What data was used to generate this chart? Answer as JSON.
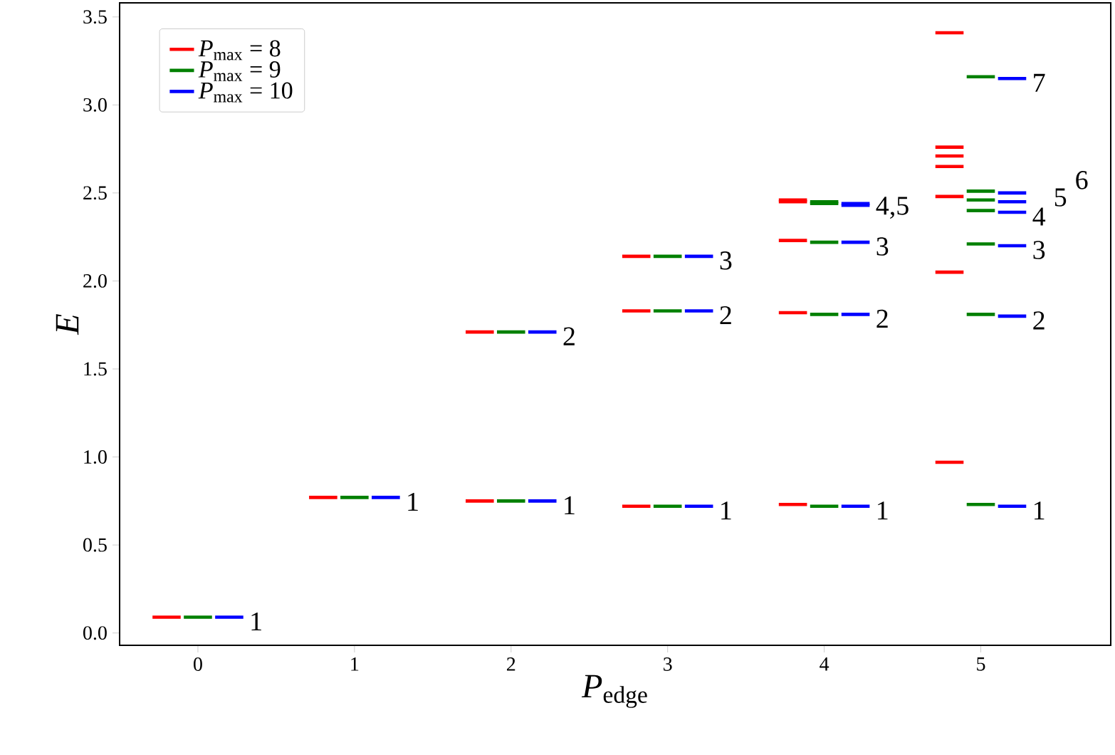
{
  "chart_data": {
    "type": "line",
    "xlabel": "*P*$_{edge}$",
    "ylabel": "E",
    "xlim": [
      -0.5,
      5.83
    ],
    "ylim": [
      -0.07,
      3.58
    ],
    "xticks": [
      0,
      1,
      2,
      3,
      4,
      5
    ],
    "yticks": [
      {
        "value": 0,
        "label": "0.0"
      },
      {
        "value": 0.5,
        "label": "0.5"
      },
      {
        "value": 1,
        "label": "1.0"
      },
      {
        "value": 1.5,
        "label": "1.5"
      },
      {
        "value": 2,
        "label": "2.0"
      },
      {
        "value": 2.5,
        "label": "2.5"
      },
      {
        "value": 3,
        "label": "3.0"
      },
      {
        "value": 3.5,
        "label": "3.5"
      }
    ],
    "legend": "top left",
    "series": [
      {
        "name": "*P*$_{max}$ = 8",
        "color": "#ff0000",
        "x": [
          -0.29,
          -0.11
        ],
        "values": [
          0.09,
          0.09
        ]
      },
      {
        "name": "*P*$_{max}$ = 9",
        "color": "#008000",
        "x": [
          -0.09,
          0.09
        ],
        "values": [
          0.09,
          0.09
        ]
      },
      {
        "name": "*P*$_{max}$ = 10",
        "color": "#0000ff",
        "x": [
          0.11,
          0.29
        ],
        "values": [
          0.09,
          0.09
        ]
      },
      {
        "color": "#ff0000",
        "x": [
          0.71,
          0.89
        ],
        "values": [
          0.77,
          0.77
        ]
      },
      {
        "color": "#ff0000",
        "x": [
          1.71,
          1.89
        ],
        "values": [
          0.75,
          0.75
        ]
      },
      {
        "color": "#ff0000",
        "x": [
          1.71,
          1.89
        ],
        "values": [
          1.71,
          1.71
        ]
      },
      {
        "color": "#ff0000",
        "x": [
          2.71,
          2.89
        ],
        "values": [
          0.72,
          0.72
        ]
      },
      {
        "color": "#ff0000",
        "x": [
          2.71,
          2.89
        ],
        "values": [
          1.83,
          1.83
        ]
      },
      {
        "color": "#ff0000",
        "x": [
          2.71,
          2.89
        ],
        "values": [
          2.14,
          2.14
        ]
      },
      {
        "color": "#ff0000",
        "x": [
          3.71,
          3.89
        ],
        "values": [
          0.73,
          0.73
        ]
      },
      {
        "color": "#ff0000",
        "x": [
          3.71,
          3.89
        ],
        "values": [
          1.82,
          1.82
        ]
      },
      {
        "color": "#ff0000",
        "x": [
          3.71,
          3.89
        ],
        "values": [
          2.23,
          2.23
        ]
      },
      {
        "color": "#ff0000",
        "x": [
          3.71,
          3.89
        ],
        "values": [
          2.45,
          2.45
        ]
      },
      {
        "color": "#ff0000",
        "x": [
          3.71,
          3.89
        ],
        "values": [
          2.46,
          2.46
        ]
      },
      {
        "color": "#ff0000",
        "x": [
          4.71,
          4.89
        ],
        "values": [
          0.97,
          0.97
        ]
      },
      {
        "color": "#ff0000",
        "x": [
          4.71,
          4.89
        ],
        "values": [
          2.05,
          2.05
        ]
      },
      {
        "color": "#ff0000",
        "x": [
          4.71,
          4.89
        ],
        "values": [
          2.48,
          2.48
        ]
      },
      {
        "color": "#ff0000",
        "x": [
          4.71,
          4.89
        ],
        "values": [
          2.65,
          2.65
        ]
      },
      {
        "color": "#ff0000",
        "x": [
          4.71,
          4.89
        ],
        "values": [
          2.71,
          2.71
        ]
      },
      {
        "color": "#ff0000",
        "x": [
          4.71,
          4.89
        ],
        "values": [
          2.76,
          2.76
        ]
      },
      {
        "color": "#ff0000",
        "x": [
          4.71,
          4.89
        ],
        "values": [
          3.41,
          3.41
        ]
      },
      {
        "color": "#008000",
        "x": [
          0.91,
          1.09
        ],
        "values": [
          0.77,
          0.77
        ]
      },
      {
        "color": "#008000",
        "x": [
          1.91,
          2.09
        ],
        "values": [
          0.75,
          0.75
        ]
      },
      {
        "color": "#008000",
        "x": [
          1.91,
          2.09
        ],
        "values": [
          1.71,
          1.71
        ]
      },
      {
        "color": "#008000",
        "x": [
          2.91,
          3.09
        ],
        "values": [
          0.72,
          0.72
        ]
      },
      {
        "color": "#008000",
        "x": [
          2.91,
          3.09
        ],
        "values": [
          1.83,
          1.83
        ]
      },
      {
        "color": "#008000",
        "x": [
          2.91,
          3.09
        ],
        "values": [
          2.14,
          2.14
        ]
      },
      {
        "color": "#008000",
        "x": [
          3.91,
          4.09
        ],
        "values": [
          0.72,
          0.72
        ]
      },
      {
        "color": "#008000",
        "x": [
          3.91,
          4.09
        ],
        "values": [
          1.81,
          1.81
        ]
      },
      {
        "color": "#008000",
        "x": [
          3.91,
          4.09
        ],
        "values": [
          2.22,
          2.22
        ]
      },
      {
        "color": "#008000",
        "x": [
          3.91,
          4.09
        ],
        "values": [
          2.44,
          2.44
        ]
      },
      {
        "color": "#008000",
        "x": [
          3.91,
          4.09
        ],
        "values": [
          2.45,
          2.45
        ]
      },
      {
        "color": "#008000",
        "x": [
          4.91,
          5.09
        ],
        "values": [
          0.73,
          0.73
        ]
      },
      {
        "color": "#008000",
        "x": [
          4.91,
          5.09
        ],
        "values": [
          1.81,
          1.81
        ]
      },
      {
        "color": "#008000",
        "x": [
          4.91,
          5.09
        ],
        "values": [
          2.21,
          2.21
        ]
      },
      {
        "color": "#008000",
        "x": [
          4.91,
          5.09
        ],
        "values": [
          2.4,
          2.4
        ]
      },
      {
        "color": "#008000",
        "x": [
          4.91,
          5.09
        ],
        "values": [
          2.46,
          2.46
        ]
      },
      {
        "color": "#008000",
        "x": [
          4.91,
          5.09
        ],
        "values": [
          2.51,
          2.51
        ]
      },
      {
        "color": "#008000",
        "x": [
          4.91,
          5.09
        ],
        "values": [
          3.16,
          3.16
        ]
      },
      {
        "color": "#0000ff",
        "x": [
          1.11,
          1.29
        ],
        "values": [
          0.77,
          0.77
        ]
      },
      {
        "color": "#0000ff",
        "x": [
          2.11,
          2.29
        ],
        "values": [
          0.75,
          0.75
        ]
      },
      {
        "color": "#0000ff",
        "x": [
          2.11,
          2.29
        ],
        "values": [
          1.71,
          1.71
        ]
      },
      {
        "color": "#0000ff",
        "x": [
          3.11,
          3.29
        ],
        "values": [
          0.72,
          0.72
        ]
      },
      {
        "color": "#0000ff",
        "x": [
          3.11,
          3.29
        ],
        "values": [
          1.83,
          1.83
        ]
      },
      {
        "color": "#0000ff",
        "x": [
          3.11,
          3.29
        ],
        "values": [
          2.14,
          2.14
        ]
      },
      {
        "color": "#0000ff",
        "x": [
          4.11,
          4.29
        ],
        "values": [
          0.72,
          0.72
        ]
      },
      {
        "color": "#0000ff",
        "x": [
          4.11,
          4.29
        ],
        "values": [
          1.81,
          1.81
        ]
      },
      {
        "color": "#0000ff",
        "x": [
          4.11,
          4.29
        ],
        "values": [
          2.22,
          2.22
        ]
      },
      {
        "color": "#0000ff",
        "x": [
          4.11,
          4.29
        ],
        "values": [
          2.43,
          2.43
        ]
      },
      {
        "color": "#0000ff",
        "x": [
          4.11,
          4.29
        ],
        "values": [
          2.44,
          2.44
        ]
      },
      {
        "color": "#0000ff",
        "x": [
          5.11,
          5.29
        ],
        "values": [
          0.72,
          0.72
        ]
      },
      {
        "color": "#0000ff",
        "x": [
          5.11,
          5.29
        ],
        "values": [
          1.8,
          1.8
        ]
      },
      {
        "color": "#0000ff",
        "x": [
          5.11,
          5.29
        ],
        "values": [
          2.2,
          2.2
        ]
      },
      {
        "color": "#0000ff",
        "x": [
          5.11,
          5.29
        ],
        "values": [
          2.39,
          2.39
        ]
      },
      {
        "color": "#0000ff",
        "x": [
          5.11,
          5.29
        ],
        "values": [
          2.45,
          2.45
        ]
      },
      {
        "color": "#0000ff",
        "x": [
          5.11,
          5.29
        ],
        "values": [
          2.5,
          2.5
        ]
      },
      {
        "color": "#0000ff",
        "x": [
          5.11,
          5.29
        ],
        "values": [
          3.15,
          3.15
        ]
      }
    ],
    "annotations": [
      {
        "text": "1",
        "x": 0.29,
        "y": 0.09
      },
      {
        "text": "1",
        "x": 1.29,
        "y": 0.77
      },
      {
        "text": "1",
        "x": 2.29,
        "y": 0.75
      },
      {
        "text": "2",
        "x": 2.29,
        "y": 1.71
      },
      {
        "text": "1",
        "x": 3.29,
        "y": 0.72
      },
      {
        "text": "2",
        "x": 3.29,
        "y": 1.83
      },
      {
        "text": "3",
        "x": 3.29,
        "y": 2.14
      },
      {
        "text": "1",
        "x": 4.29,
        "y": 0.72
      },
      {
        "text": "2",
        "x": 4.29,
        "y": 1.81
      },
      {
        "text": "3",
        "x": 4.29,
        "y": 2.22
      },
      {
        "text": "4,5",
        "x": 4.29,
        "y": 2.44
      },
      {
        "text": "1",
        "x": 5.29,
        "y": 0.72
      },
      {
        "text": "2",
        "x": 5.29,
        "y": 1.8
      },
      {
        "text": "3",
        "x": 5.29,
        "y": 2.2
      },
      {
        "text": "4",
        "x": 5.29,
        "y": 2.39
      },
      {
        "text": "5",
        "x": 5.29,
        "y": 2.45
      },
      {
        "text": "6",
        "x": 5.29,
        "y": 2.5
      },
      {
        "text": "7",
        "x": 5.29,
        "y": 3.15
      }
    ]
  }
}
